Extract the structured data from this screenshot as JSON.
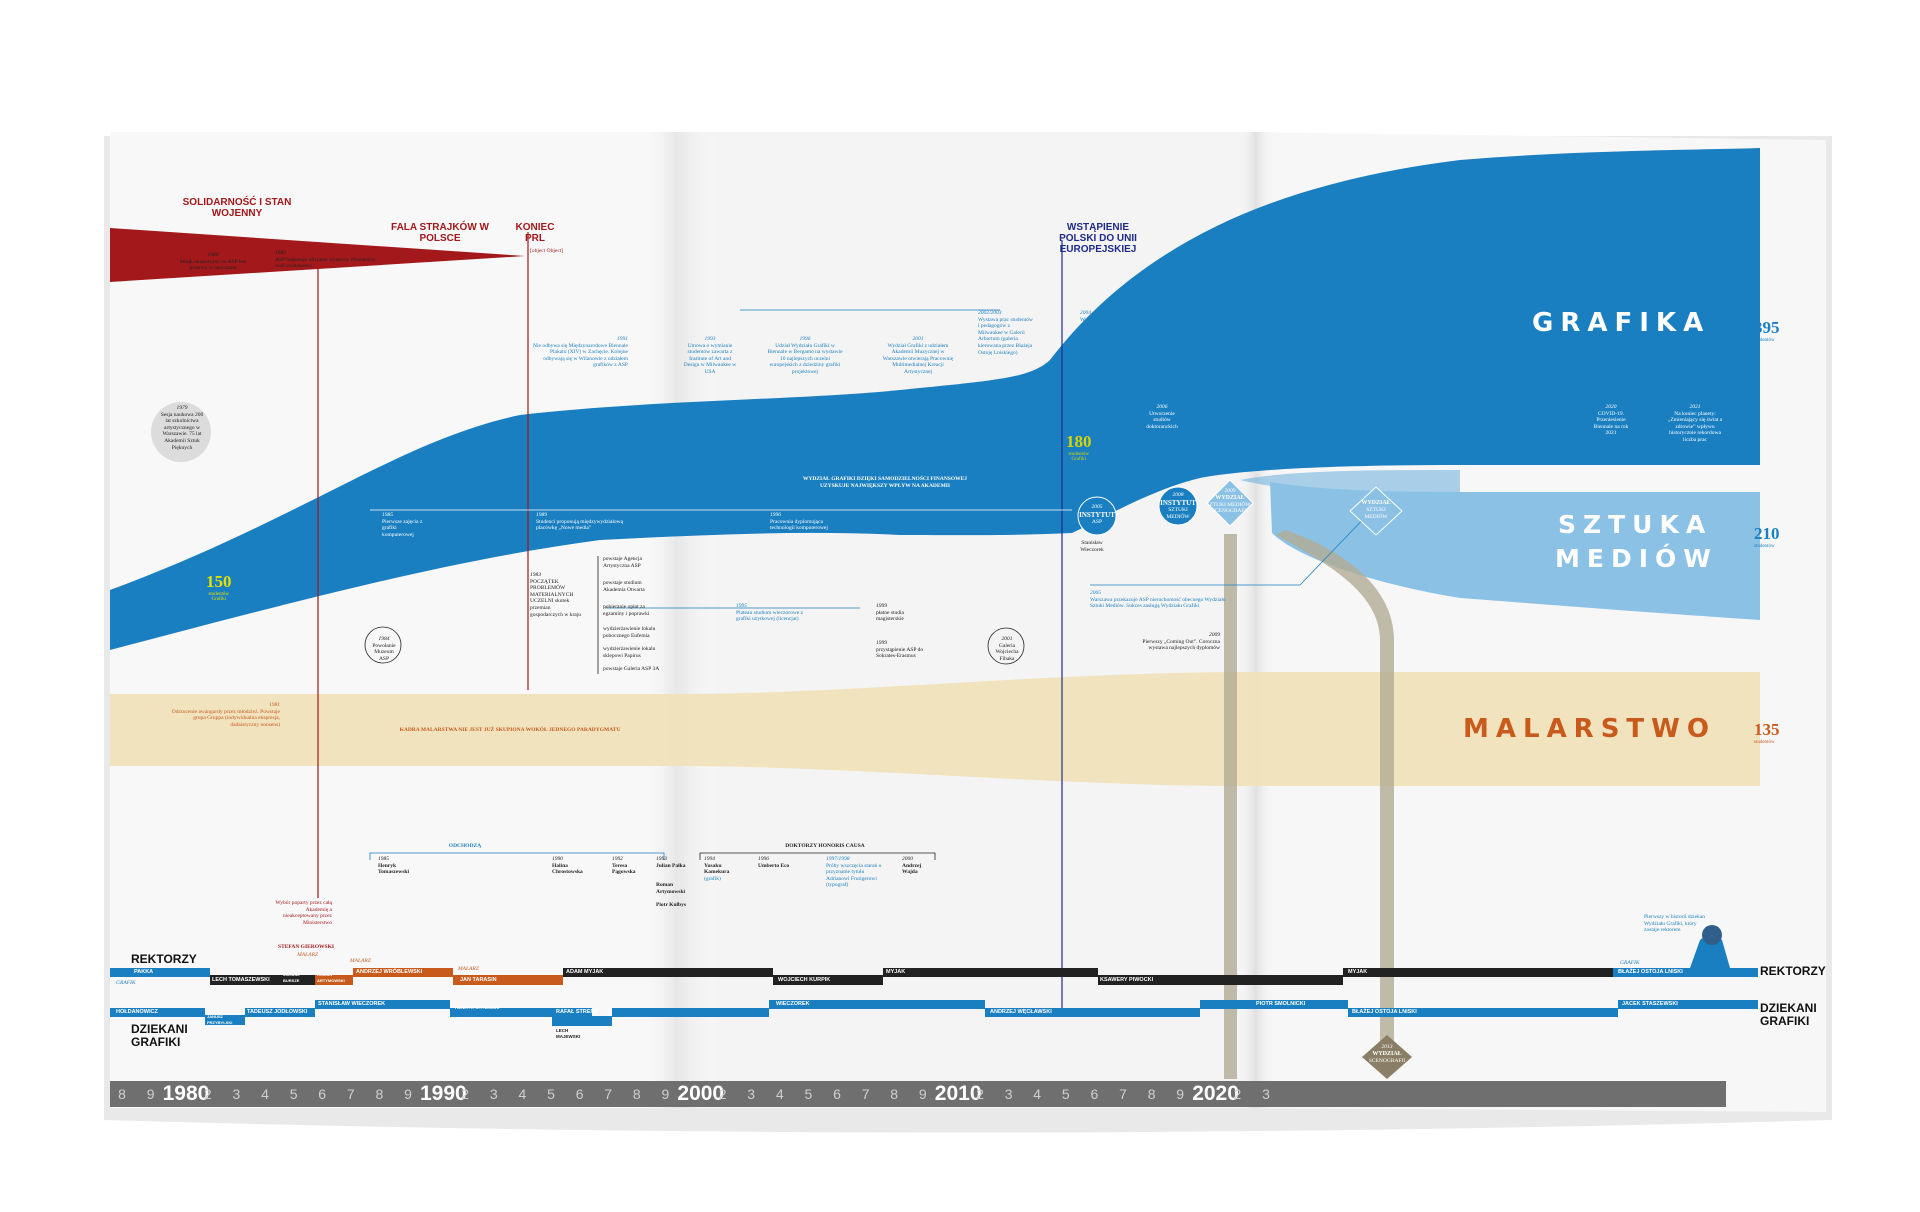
{
  "streams": {
    "grafika": {
      "label": "GRAFIKA",
      "count": "395",
      "unit": "studentów",
      "color": "#1a7fc1"
    },
    "sztuka_mediow": {
      "label_line1": "SZTUKA",
      "label_line2": "MEDIÓW",
      "count": "210",
      "unit": "studentów",
      "color": "#8cc1e6"
    },
    "malarstwo": {
      "label": "MALARSTWO",
      "count": "135",
      "unit": "studentów",
      "color": "#f1e2bc"
    },
    "grafika_1980": {
      "count": "150",
      "unit1": "studentów",
      "unit2": "Grafiki"
    },
    "grafika_2004": {
      "count": "180",
      "unit1": "studentów",
      "unit2": "Grafiki"
    }
  },
  "history": {
    "solidarnosc": "SOLIDARNOŚĆ I STAN WOJENNY",
    "fala": "FALA STRAJKÓW W POLSCE",
    "koniec": "KONIEC PRL",
    "unia": "WSTĄPIENIE POLSKI DO UNII EUROPEJSKIEJ"
  },
  "events": {
    "e1980": {
      "year": "1980",
      "text": "Strajk okupacyjny na ASP bez przerwy w nauczaniu"
    },
    "e1982": {
      "year": "1982",
      "text": "ASP bojkotuje oficjalne wystawy. Nieza­leżny ruch wystawowy"
    },
    "e1989": {
      "text": "Zakończenie mecenatu państwa oznacza obniżenie ilości wydawanych plakatów oraz ich artystycznej wartości. Powstaje rynek reklamy"
    },
    "e1979": {
      "year": "1979",
      "text": "Sesja naukowa 200 lat szkolnictwa artystycznego w Warszawie. 75 lat Akademii Sztuk Pięknych"
    },
    "e1991": {
      "year": "1991",
      "text": "Nie odbywa się Międzynarodowe Biennale Plakatu (XIV) w Zachęcie. Kolejne odbywają się w Wilanowie z udziałem grafików z ASP"
    },
    "e1993": {
      "year": "1993",
      "text": "Umowa o wymianie studentów zawarta z Institute of Art and Design w Milwaukee w USA"
    },
    "e1996": {
      "year": "1996",
      "text": "Udział Wydziału Grafiki w Biennale w Bergamo na wystawie 10 najlepszych uczelni europejskich z dziedziny grafiki projektowej"
    },
    "e2001": {
      "year": "2001",
      "text": "Wydział Grafiki z udziałem Akademii Muzycznej w Warszawie otwierają Pracownię Multimedialnej Kreacji Artystycznej"
    },
    "e2002": {
      "year": "2002/2003",
      "text": "Wystawa prac studentów i pedagogów z Milwaukee w Galerii Arbortum (galeria kierowana przez Błażeja Ostoję Lniskiego)"
    },
    "e2004": {
      "year": "2004",
      "text": "Wystawa „Wszystko na papierze” w Wilanowie. Wielka prezentacja osiągnięć Wydziału Grafiki"
    },
    "e2006": {
      "year": "2006",
      "text": "Utworzenie studiów doktoranckich"
    },
    "e2020": {
      "year": "2020",
      "text": "COVID-19. Przeniesienie Biennale na rok 2021"
    },
    "e2021": {
      "year": "2021",
      "text": "Na koniec planety: „Zmieniający się świat a zdrowie” wpływu historycznie rekordowa liczba prac"
    },
    "e1985": {
      "year": "1985",
      "text": "Pierwsze zajęcia z grafiki komputerowej"
    },
    "e1989b": {
      "year": "1989",
      "text": "Studenci proponują międzywydziałową placówkę „Nowe media”"
    },
    "e1996b": {
      "year": "1996",
      "text": "Pracownia dyplomująca technologii komputerowej"
    },
    "wydzial_note": "WYDZIAŁ GRAFIKI DZIĘKI SAMODZIELNOŚCI FINANSOWEJ UZYSKUJE NAJWIĘKSZY WPŁYW NA AKADEMII",
    "e1983": {
      "year": "1983",
      "text": "POCZĄTEK PROBLEMÓW MATERIALNYCH UCZELNI skutek przemian gospodarczych w kraju"
    },
    "p1": "powstaje Agencja Artystyczna ASP",
    "p2": "powstaje studium Akademia Otwarta",
    "p3": "pobieranie opłat za egzaminy i poprawki",
    "p4": "wydzierżawienie lokalu pobocznego Eufemia",
    "p5": "wydzierżawienie lokalu sklepowi Papirus",
    "p6": "powstaje Galeria ASP 3A",
    "e1995": {
      "year": "1995",
      "text": "Plateau studium wieczorowe z grafiki użytkowej (licencjat)"
    },
    "e1999": {
      "year": "1999",
      "text": "płatne studia magisterskie"
    },
    "e1999b": {
      "year": "1999",
      "text": "przystąpienie ASP do Sokrates-Erasmus"
    },
    "e1984": {
      "year": "1984",
      "text": "Powołanie Muzeum ASP"
    },
    "e2001b": {
      "year": "2001",
      "text": "Galeria Wojciecha Fibaka"
    },
    "e2005": {
      "year": "2005",
      "text": "Warszawa przekazuje ASP nieruchomość obecnego Wydziału Sztuki Mediów. Sukces zasługą Wydziału Grafiki"
    },
    "e2009": {
      "year": "2009",
      "text": "Pierwszy „Coming Out”. Coroczna wystawa najlepszych dyplomów"
    },
    "e1981": {
      "year": "1981",
      "text": "Odrzucenie awangardy przez młodzież. Powstaje grupa Gruppa (indywidualna ekspresja, dadaistyczny nonsens)"
    },
    "malarstwo_note": "KADRA MALARSTWA NIE JEST JUŻ SKUPIONA WOKÓŁ JEDNEGO PARADYGMATU",
    "instytut1": "INSTYTUT",
    "instytut1_sub": "ASP",
    "instytut1_year": "2005",
    "instytut2": "INSTYTUT",
    "instytut2_sub": "SZTUKI MEDIÓW",
    "instytut2_year": "2008",
    "wydzial1": "WYDZIAŁ",
    "wydzial1_sub": "SZTUKI MEDIÓW I SCENOGRAFII",
    "wydzial1_year": "2009",
    "wydzial2": "WYDZIAŁ",
    "wydzial2_sub": "SZTUKI MEDIÓW",
    "wydzial3": "WYDZIAŁ",
    "wydzial3_sub": "SCENOGRAFII",
    "wydzial3_year": "2013",
    "winczarek": "Stanisław Wieczorek",
    "odchodza": "ODCHODZĄ",
    "doktorzy": "DOKTORZY HONORIS CAUSA"
  },
  "people": {
    "p1985": {
      "year": "1985",
      "name": "Henryk Tomaszewski"
    },
    "p1990": {
      "year": "1990",
      "name": "Halina Chrostowska"
    },
    "p1992": {
      "year": "1992",
      "name": "Teresa Pągowska"
    },
    "p1993": {
      "year": "1993",
      "name": "Julian Pałka"
    },
    "p_roman": {
      "name": "Roman Artymowski"
    },
    "p_piotr": {
      "name": "Piotr Kulbys"
    },
    "p1994": {
      "year": "1994",
      "name": "Yusaku Kamekura",
      "note": "(grafik)"
    },
    "p1996": {
      "year": "1996",
      "name": "Umberto Eco"
    },
    "p1997": {
      "year": "1997/1998",
      "text": "Próby wszczęcia starań o przyznanie tytułu Adrianowi Frutigerowi",
      "note": "(typograf)"
    },
    "p2000": {
      "year": "2000",
      "name": "Andrzej Wajda"
    }
  },
  "rectors": {
    "title": "REKTORZY",
    "title_right": "REKTORZY",
    "note_top": "Wybór poparty przez całą Akademię a nieakceptowany przez Ministerstwo",
    "gierowski": "STEFAN GIEROWSKI",
    "malarz": "MALARZ",
    "grafik": "GRAFIK",
    "items": [
      "PAKKA",
      "LECH TOMASZEWSKI",
      "JULIUSZ BURSZE",
      "ROMAN ARTYMOWSKI",
      "ANDRZEJ WRÓBLEWSKI",
      "JAN TARASIN",
      "ADAM MYJAK",
      "WOJCIECH KURPIK",
      "MYJAK",
      "KSAWERY PIWOCKI",
      "MYJAK",
      "BŁAŻEJ OSTOJA LNISKI"
    ],
    "first_dean_note": "Pierwszy w historii dziekan Wydziału Grafiki, który zostaje rektorem"
  },
  "deans": {
    "title_line1": "DZIEKANI",
    "title_line2": "GRAFIKI",
    "right_line1": "DZIEKANI",
    "right_line2": "GRAFIKI",
    "items": [
      "HOŁDANOWICZ",
      "JANUSZ PRZYBYLSKI",
      "TADEUSZ JODŁOWSKI",
      "STANISŁAW WIECZOREK",
      "HENRYK CHYLIŃSKI",
      "RAFAŁ STRENT",
      "LECH MAJEWSKI",
      "WIECZOREK",
      "ANDRZEJ WĘCŁAWSKI",
      "PIOTR SMOLNICKI",
      "BŁAŻEJ OSTOJA LNISKI",
      "JACEK STASZEWSKI"
    ]
  },
  "axis": {
    "decades": [
      "1980",
      "1990",
      "2000",
      "2010",
      "2020"
    ],
    "digits": [
      "8",
      "9",
      "1",
      "2",
      "3",
      "4",
      "5",
      "6",
      "7",
      "8",
      "9",
      "1",
      "2",
      "3",
      "4",
      "5",
      "6",
      "7",
      "8",
      "9",
      "1",
      "2",
      "3",
      "4",
      "5",
      "6",
      "7",
      "8",
      "9",
      "1",
      "2",
      "3",
      "4",
      "5",
      "6",
      "7",
      "8",
      "9",
      "1",
      "2",
      "3"
    ]
  }
}
